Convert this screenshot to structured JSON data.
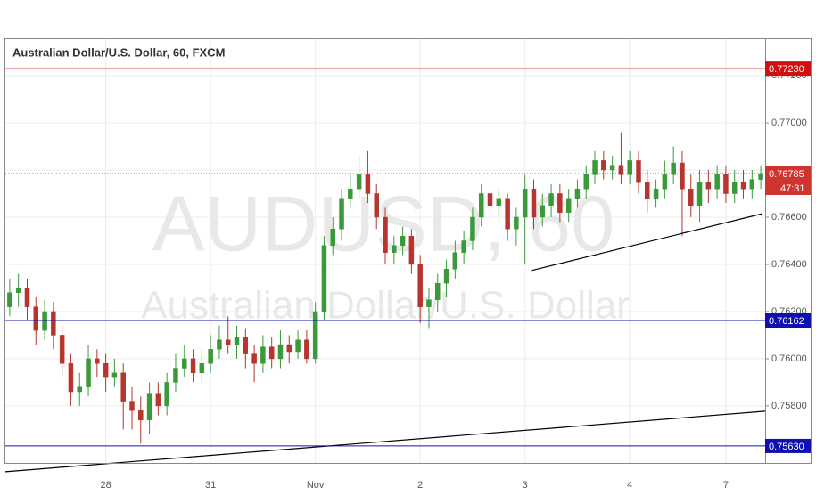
{
  "chart_data": {
    "type": "candlestick",
    "title": "Australian Dollar/U.S. Dollar, 60, FXCM",
    "watermark": "AUDUSD, 60",
    "watermark_subtitle": "Australian Dollar/U.S. Dollar",
    "up_color": "#3a9a3a",
    "down_color": "#b8342e",
    "categories": [
      null,
      null,
      null,
      null,
      null,
      null,
      null,
      null,
      null,
      null,
      null,
      "28",
      null,
      null,
      null,
      null,
      null,
      null,
      null,
      null,
      null,
      null,
      null,
      "31",
      null,
      null,
      null,
      null,
      null,
      null,
      null,
      null,
      null,
      null,
      null,
      "Nov",
      null,
      null,
      null,
      null,
      null,
      null,
      null,
      null,
      null,
      null,
      null,
      "2",
      null,
      null,
      null,
      null,
      null,
      null,
      null,
      null,
      null,
      null,
      null,
      "3",
      null,
      null,
      null,
      null,
      null,
      null,
      null,
      null,
      null,
      null,
      null,
      "4",
      null,
      null,
      null,
      null,
      null,
      null,
      null,
      null,
      null,
      null,
      "7",
      null,
      null,
      null,
      null
    ],
    "candles": [
      [
        0.7622,
        0.7634,
        0.7618,
        0.7628
      ],
      [
        0.7628,
        0.7636,
        0.7622,
        0.763
      ],
      [
        0.763,
        0.7634,
        0.7616,
        0.7622
      ],
      [
        0.7622,
        0.7626,
        0.7606,
        0.7612
      ],
      [
        0.7612,
        0.7625,
        0.7608,
        0.762
      ],
      [
        0.762,
        0.7624,
        0.7604,
        0.761
      ],
      [
        0.761,
        0.7614,
        0.7592,
        0.7598
      ],
      [
        0.7598,
        0.7602,
        0.758,
        0.7586
      ],
      [
        0.7586,
        0.7594,
        0.758,
        0.7588
      ],
      [
        0.7588,
        0.7606,
        0.7584,
        0.76
      ],
      [
        0.76,
        0.7604,
        0.7592,
        0.7598
      ],
      [
        0.7598,
        0.7602,
        0.7586,
        0.7592
      ],
      [
        0.7592,
        0.76,
        0.7588,
        0.7594
      ],
      [
        0.7594,
        0.7598,
        0.757,
        0.7582
      ],
      [
        0.7582,
        0.7588,
        0.757,
        0.7578
      ],
      [
        0.7578,
        0.7584,
        0.7564,
        0.7574
      ],
      [
        0.7574,
        0.759,
        0.7568,
        0.7585
      ],
      [
        0.7585,
        0.759,
        0.7576,
        0.758
      ],
      [
        0.758,
        0.7594,
        0.7576,
        0.759
      ],
      [
        0.759,
        0.7602,
        0.7586,
        0.7596
      ],
      [
        0.7596,
        0.7606,
        0.7592,
        0.76
      ],
      [
        0.76,
        0.7604,
        0.759,
        0.7594
      ],
      [
        0.7594,
        0.7604,
        0.759,
        0.7598
      ],
      [
        0.7598,
        0.761,
        0.7594,
        0.7604
      ],
      [
        0.7604,
        0.7614,
        0.76,
        0.7608
      ],
      [
        0.7608,
        0.7618,
        0.7602,
        0.7606
      ],
      [
        0.7606,
        0.7614,
        0.76,
        0.7609
      ],
      [
        0.7609,
        0.7613,
        0.7596,
        0.7602
      ],
      [
        0.7602,
        0.7606,
        0.759,
        0.7598
      ],
      [
        0.7598,
        0.761,
        0.7594,
        0.7605
      ],
      [
        0.7605,
        0.7609,
        0.7596,
        0.76
      ],
      [
        0.76,
        0.7612,
        0.7596,
        0.7606
      ],
      [
        0.7606,
        0.761,
        0.7598,
        0.7603
      ],
      [
        0.7603,
        0.7612,
        0.76,
        0.7608
      ],
      [
        0.7608,
        0.7612,
        0.7598,
        0.76
      ],
      [
        0.76,
        0.7624,
        0.7598,
        0.762
      ],
      [
        0.762,
        0.7652,
        0.7616,
        0.7648
      ],
      [
        0.7648,
        0.766,
        0.7644,
        0.7655
      ],
      [
        0.7655,
        0.7672,
        0.765,
        0.7668
      ],
      [
        0.7668,
        0.7678,
        0.7664,
        0.7672
      ],
      [
        0.7672,
        0.7686,
        0.7668,
        0.7678
      ],
      [
        0.7678,
        0.7688,
        0.7666,
        0.767
      ],
      [
        0.767,
        0.7674,
        0.7655,
        0.766
      ],
      [
        0.766,
        0.7664,
        0.764,
        0.7645
      ],
      [
        0.7645,
        0.7652,
        0.764,
        0.7648
      ],
      [
        0.7648,
        0.7656,
        0.7644,
        0.7652
      ],
      [
        0.7652,
        0.7655,
        0.7636,
        0.764
      ],
      [
        0.764,
        0.7644,
        0.7615,
        0.7622
      ],
      [
        0.7622,
        0.763,
        0.7613,
        0.7625
      ],
      [
        0.7625,
        0.7636,
        0.762,
        0.7632
      ],
      [
        0.7632,
        0.7642,
        0.7626,
        0.7638
      ],
      [
        0.7638,
        0.765,
        0.7634,
        0.7645
      ],
      [
        0.7645,
        0.7654,
        0.764,
        0.765
      ],
      [
        0.765,
        0.7664,
        0.7646,
        0.766
      ],
      [
        0.766,
        0.7674,
        0.7656,
        0.767
      ],
      [
        0.767,
        0.7674,
        0.766,
        0.7665
      ],
      [
        0.7665,
        0.7672,
        0.766,
        0.7668
      ],
      [
        0.7668,
        0.767,
        0.765,
        0.7655
      ],
      [
        0.7655,
        0.7664,
        0.7648,
        0.766
      ],
      [
        0.766,
        0.7678,
        0.764,
        0.7672
      ],
      [
        0.7672,
        0.7676,
        0.7655,
        0.766
      ],
      [
        0.766,
        0.767,
        0.7656,
        0.7665
      ],
      [
        0.7665,
        0.7674,
        0.766,
        0.767
      ],
      [
        0.767,
        0.7674,
        0.7658,
        0.7662
      ],
      [
        0.7662,
        0.7672,
        0.7658,
        0.7668
      ],
      [
        0.7668,
        0.7676,
        0.7664,
        0.7672
      ],
      [
        0.7672,
        0.7682,
        0.7668,
        0.7678
      ],
      [
        0.7678,
        0.7688,
        0.7674,
        0.7684
      ],
      [
        0.7684,
        0.7688,
        0.7676,
        0.768
      ],
      [
        0.768,
        0.7686,
        0.7676,
        0.7682
      ],
      [
        0.7682,
        0.7696,
        0.7674,
        0.7678
      ],
      [
        0.7678,
        0.7688,
        0.7674,
        0.7684
      ],
      [
        0.7684,
        0.7688,
        0.767,
        0.7675
      ],
      [
        0.7675,
        0.768,
        0.7662,
        0.7668
      ],
      [
        0.7668,
        0.7676,
        0.7664,
        0.7672
      ],
      [
        0.7672,
        0.7684,
        0.7668,
        0.7678
      ],
      [
        0.7678,
        0.769,
        0.7674,
        0.7683
      ],
      [
        0.7683,
        0.7688,
        0.7652,
        0.7672
      ],
      [
        0.7672,
        0.7678,
        0.766,
        0.7665
      ],
      [
        0.7665,
        0.768,
        0.7658,
        0.7675
      ],
      [
        0.7675,
        0.768,
        0.7666,
        0.7672
      ],
      [
        0.7672,
        0.7682,
        0.7668,
        0.7678
      ],
      [
        0.7678,
        0.7682,
        0.7666,
        0.767
      ],
      [
        0.767,
        0.768,
        0.7666,
        0.7675
      ],
      [
        0.7675,
        0.768,
        0.7668,
        0.7672
      ],
      [
        0.7672,
        0.768,
        0.7668,
        0.7676
      ],
      [
        0.7676,
        0.7682,
        0.7672,
        0.76785
      ]
    ],
    "ylim": [
      0.75558,
      0.77355
    ],
    "yticks": [
      {
        "value": 0.758,
        "label": "0.75800"
      },
      {
        "value": 0.76,
        "label": "0.76000"
      },
      {
        "value": 0.762,
        "label": "0.76200"
      },
      {
        "value": 0.764,
        "label": "0.76400"
      },
      {
        "value": 0.766,
        "label": "0.76600"
      },
      {
        "value": 0.768,
        "label": "0.76800"
      },
      {
        "value": 0.77,
        "label": "0.77000"
      },
      {
        "value": 0.772,
        "label": "0.77200"
      }
    ],
    "grid": true,
    "levels": [
      {
        "value": 0.7723,
        "label": "0.77230",
        "color": "#d01010"
      },
      {
        "value": 0.76162,
        "label": "0.76162",
        "color": "#1010b0"
      },
      {
        "value": 0.7563,
        "label": "0.75630",
        "color": "#1010b0"
      }
    ],
    "last_price": {
      "value": 0.76785,
      "label": "0.76785",
      "countdown": "47:31",
      "color": "#d0342e"
    },
    "trendlines": [
      {
        "x": [
          -0.5,
          86.5
        ],
        "y": [
          0.755208,
          0.757774
        ]
      },
      {
        "x": [
          59.7,
          86.2
        ],
        "y": [
          0.763736,
          0.766151
        ]
      }
    ]
  }
}
